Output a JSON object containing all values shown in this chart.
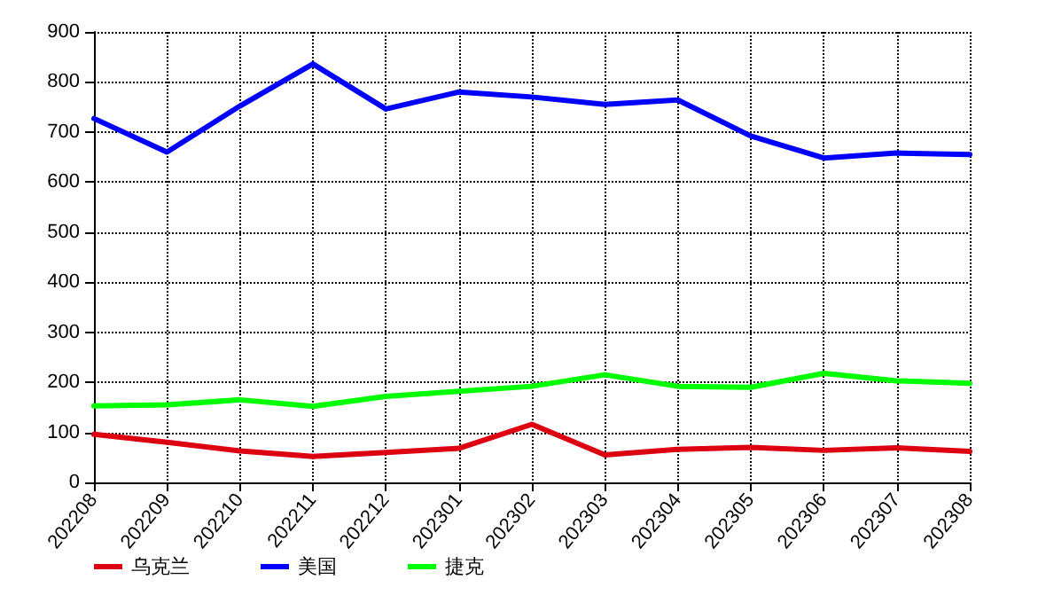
{
  "chart_data": {
    "type": "line",
    "categories": [
      "202208",
      "202209",
      "202210",
      "202211",
      "202212",
      "202301",
      "202302",
      "202303",
      "202304",
      "202305",
      "202306",
      "202307",
      "202308"
    ],
    "series": [
      {
        "name": "乌克兰",
        "color": "#dd0011",
        "values": [
          96,
          80,
          63,
          52,
          60,
          68,
          116,
          55,
          66,
          70,
          64,
          69,
          62
        ]
      },
      {
        "name": "美国",
        "color": "#0000ff",
        "values": [
          727,
          660,
          752,
          836,
          746,
          780,
          770,
          755,
          764,
          692,
          648,
          658,
          655
        ]
      },
      {
        "name": "捷克",
        "color": "#00ff00",
        "values": [
          153,
          155,
          165,
          152,
          172,
          182,
          192,
          215,
          192,
          190,
          218,
          203,
          198
        ]
      }
    ],
    "ylim": [
      0,
      900
    ],
    "yticks": [
      0,
      100,
      200,
      300,
      400,
      500,
      600,
      700,
      800,
      900
    ],
    "grid": true,
    "legend": "bottom left",
    "line_style": "solid",
    "marker": "none"
  }
}
